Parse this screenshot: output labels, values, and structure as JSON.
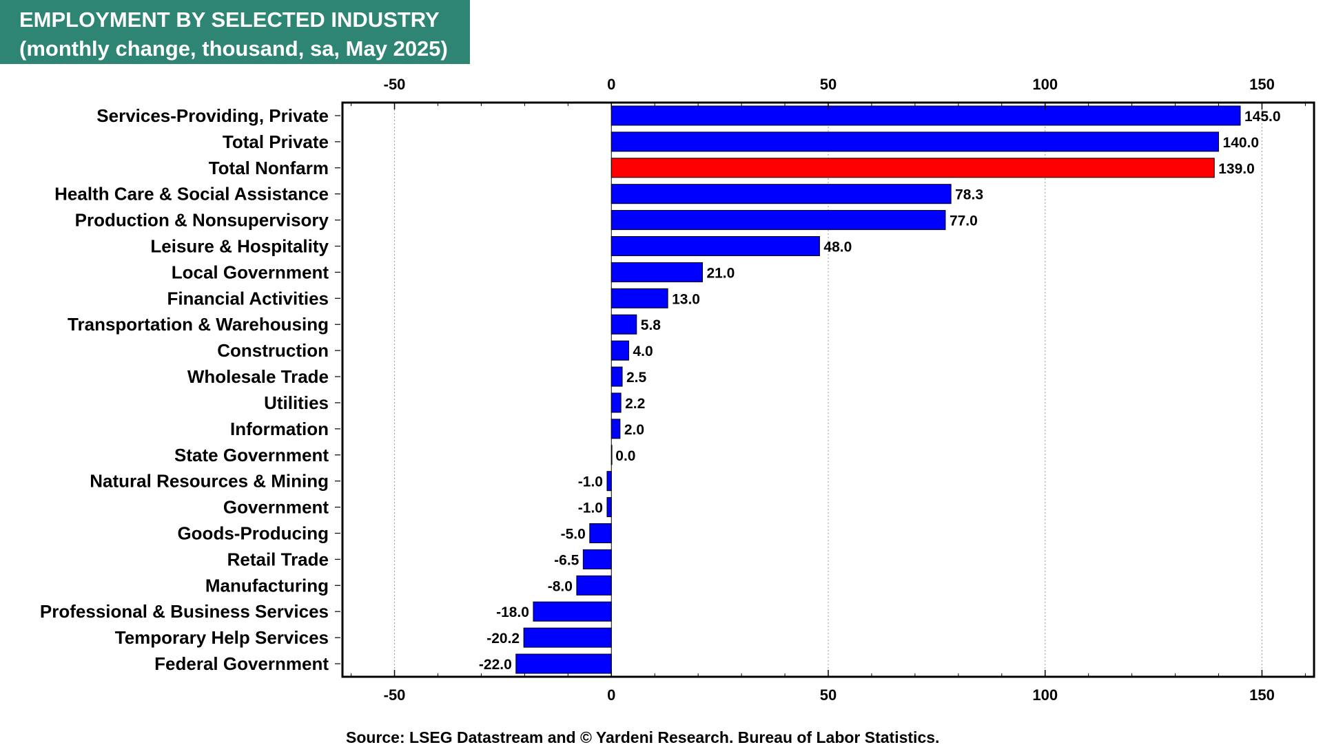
{
  "title_line1": "EMPLOYMENT BY SELECTED INDUSTRY",
  "title_line2": "(monthly change, thousand, sa, May 2025)",
  "source": "Source: LSEG Datastream and © Yardeni Research. Bureau of Labor Statistics.",
  "colors": {
    "title_bg": "#2e8573",
    "bar": "#0000ff",
    "highlight": "#ff0000"
  },
  "chart_data": {
    "type": "bar",
    "orientation": "horizontal",
    "title": "EMPLOYMENT BY SELECTED INDUSTRY",
    "subtitle": "(monthly change, thousand, sa, May 2025)",
    "xlim": [
      -62,
      162
    ],
    "xticks": [
      -50,
      0,
      50,
      100,
      150
    ],
    "grid": true,
    "categories": [
      "Services-Providing, Private",
      "Total Private",
      "Total Nonfarm",
      "Health Care & Social Assistance",
      "Production & Nonsupervisory",
      "Leisure & Hospitality",
      "Local Government",
      "Financial Activities",
      "Transportation & Warehousing",
      "Construction",
      "Wholesale Trade",
      "Utilities",
      "Information",
      "State Government",
      "Natural Resources & Mining",
      "Government",
      "Goods-Producing",
      "Retail Trade",
      "Manufacturing",
      "Professional & Business Services",
      "Temporary Help Services",
      "Federal Government"
    ],
    "values": [
      145.0,
      140.0,
      139.0,
      78.3,
      77.0,
      48.0,
      21.0,
      13.0,
      5.8,
      4.0,
      2.5,
      2.2,
      2.0,
      0.0,
      -1.0,
      -1.0,
      -5.0,
      -6.5,
      -8.0,
      -18.0,
      -20.2,
      -22.0
    ],
    "labels": [
      "145.0",
      "140.0",
      "139.0",
      "78.3",
      "77.0",
      "48.0",
      "21.0",
      "13.0",
      "5.8",
      "4.0",
      "2.5",
      "2.2",
      "2.0",
      "0.0",
      "-1.0",
      "-1.0",
      "-5.0",
      "-6.5",
      "-8.0",
      "-18.0",
      "-20.2",
      "-22.0"
    ],
    "highlight": "Total Nonfarm"
  }
}
